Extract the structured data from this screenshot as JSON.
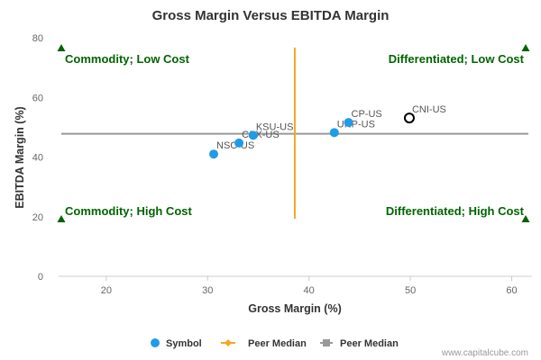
{
  "chart_data": {
    "type": "scatter",
    "title": "Gross Margin Versus EBITDA Margin",
    "xlabel": "Gross Margin (%)",
    "ylabel": "EBITDA Margin (%)",
    "xlim": [
      15.3,
      62.0
    ],
    "ylim": [
      0,
      80
    ],
    "xticks": [
      20,
      30,
      40,
      50,
      60
    ],
    "yticks": [
      0,
      20,
      40,
      60,
      80
    ],
    "points": [
      {
        "label": "NSC-US",
        "x": 30.6,
        "y": 41.0,
        "style": "filled"
      },
      {
        "label": "CSX-US",
        "x": 33.1,
        "y": 44.7,
        "style": "filled"
      },
      {
        "label": "KSU-US",
        "x": 34.5,
        "y": 47.3,
        "style": "filled"
      },
      {
        "label": "UNP-US",
        "x": 42.5,
        "y": 48.2,
        "style": "filled"
      },
      {
        "label": "CP-US",
        "x": 43.9,
        "y": 51.6,
        "style": "filled"
      },
      {
        "label": "CNI-US",
        "x": 49.9,
        "y": 53.1,
        "style": "highlight"
      }
    ],
    "peer_median_x": {
      "value": 38.6,
      "y_range": [
        19.3,
        76.7
      ],
      "color": "#f5a623"
    },
    "peer_median_y": {
      "value": 47.8,
      "color": "#999999"
    },
    "quadrants": [
      {
        "label": "Commodity; Low Cost",
        "position": "top-left"
      },
      {
        "label": "Differentiated; Low Cost",
        "position": "top-right"
      },
      {
        "label": "Commodity; High Cost",
        "position": "bottom-left"
      },
      {
        "label": "Differentiated; High Cost",
        "position": "bottom-right"
      }
    ],
    "legend": [
      {
        "label": "Symbol",
        "kind": "dot",
        "color": "#1f9be8"
      },
      {
        "label": "Peer Median",
        "kind": "diamond-line",
        "color": "#f5a623"
      },
      {
        "label": "Peer Median",
        "kind": "square-line",
        "color": "#999999"
      }
    ],
    "colors": {
      "point": "#1f9be8",
      "quadrant_text": "#006400",
      "marker": "#006400",
      "axis": "#cccccc",
      "title": "#333333"
    },
    "credit": "www.capitalcube.com"
  }
}
